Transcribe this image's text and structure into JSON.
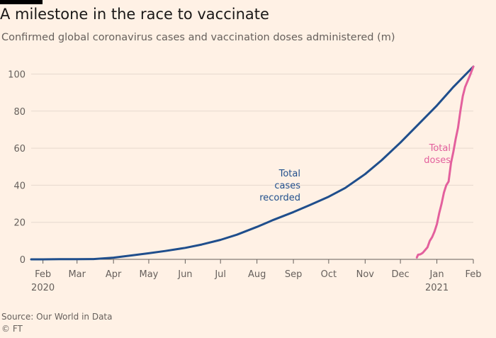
{
  "title": "A milestone in the race to vaccinate",
  "subtitle": "Confirmed global coronavirus cases and vaccination doses administered (m)",
  "source": "Source: Our World in Data",
  "copyright": "© FT",
  "chart_data": {
    "type": "line",
    "ylim": [
      0,
      104
    ],
    "xlim": [
      "2020-01-22",
      "2021-02-01"
    ],
    "y_ticks": [
      0,
      20,
      40,
      60,
      80,
      100
    ],
    "x_ticks": [
      {
        "label": "Feb",
        "sublabel": "2020",
        "date": "2020-02-01"
      },
      {
        "label": "Mar",
        "sublabel": "",
        "date": "2020-03-01"
      },
      {
        "label": "Apr",
        "sublabel": "",
        "date": "2020-04-01"
      },
      {
        "label": "May",
        "sublabel": "",
        "date": "2020-05-01"
      },
      {
        "label": "Jun",
        "sublabel": "",
        "date": "2020-06-01"
      },
      {
        "label": "Jul",
        "sublabel": "",
        "date": "2020-07-01"
      },
      {
        "label": "Aug",
        "sublabel": "",
        "date": "2020-08-01"
      },
      {
        "label": "Sep",
        "sublabel": "",
        "date": "2020-09-01"
      },
      {
        "label": "Oct",
        "sublabel": "",
        "date": "2020-10-01"
      },
      {
        "label": "Nov",
        "sublabel": "",
        "date": "2020-11-01"
      },
      {
        "label": "Dec",
        "sublabel": "",
        "date": "2020-12-01"
      },
      {
        "label": "Jan",
        "sublabel": "2021",
        "date": "2021-01-01"
      },
      {
        "label": "Feb",
        "sublabel": "",
        "date": "2021-02-01"
      }
    ],
    "grid": "horizontal",
    "series": [
      {
        "name": "Total cases recorded",
        "color": "#1f4e8c",
        "points": [
          [
            "2020-01-22",
            0.0
          ],
          [
            "2020-02-01",
            0.01
          ],
          [
            "2020-02-15",
            0.07
          ],
          [
            "2020-03-01",
            0.09
          ],
          [
            "2020-03-15",
            0.17
          ],
          [
            "2020-04-01",
            0.9
          ],
          [
            "2020-04-15",
            2.0
          ],
          [
            "2020-05-01",
            3.3
          ],
          [
            "2020-05-15",
            4.5
          ],
          [
            "2020-06-01",
            6.2
          ],
          [
            "2020-06-15",
            8.0
          ],
          [
            "2020-07-01",
            10.5
          ],
          [
            "2020-07-15",
            13.3
          ],
          [
            "2020-08-01",
            17.5
          ],
          [
            "2020-08-15",
            21.3
          ],
          [
            "2020-09-01",
            25.5
          ],
          [
            "2020-09-15",
            29.3
          ],
          [
            "2020-10-01",
            33.8
          ],
          [
            "2020-10-15",
            38.5
          ],
          [
            "2020-11-01",
            46.0
          ],
          [
            "2020-11-15",
            53.5
          ],
          [
            "2020-12-01",
            63.0
          ],
          [
            "2020-12-15",
            72.0
          ],
          [
            "2021-01-01",
            83.0
          ],
          [
            "2021-01-15",
            93.0
          ],
          [
            "2021-02-01",
            104.0
          ]
        ],
        "label_lines": [
          "Total",
          "cases",
          "recorded"
        ]
      },
      {
        "name": "Total doses",
        "color": "#e3609d",
        "points": [
          [
            "2020-12-15",
            1.0
          ],
          [
            "2020-12-16",
            2.5
          ],
          [
            "2020-12-18",
            2.7
          ],
          [
            "2020-12-20",
            3.5
          ],
          [
            "2020-12-22",
            5.0
          ],
          [
            "2020-12-24",
            6.5
          ],
          [
            "2020-12-26",
            10.0
          ],
          [
            "2020-12-28",
            12.0
          ],
          [
            "2020-12-30",
            15.0
          ],
          [
            "2021-01-01",
            19.0
          ],
          [
            "2021-01-03",
            25.0
          ],
          [
            "2021-01-05",
            30.0
          ],
          [
            "2021-01-07",
            36.0
          ],
          [
            "2021-01-09",
            40.0
          ],
          [
            "2021-01-11",
            42.0
          ],
          [
            "2021-01-13",
            52.0
          ],
          [
            "2021-01-15",
            58.0
          ],
          [
            "2021-01-17",
            65.0
          ],
          [
            "2021-01-19",
            71.0
          ],
          [
            "2021-01-21",
            80.0
          ],
          [
            "2021-01-23",
            88.0
          ],
          [
            "2021-01-25",
            93.0
          ],
          [
            "2021-01-27",
            96.0
          ],
          [
            "2021-01-29",
            99.0
          ],
          [
            "2021-02-01",
            104.0
          ]
        ],
        "label_lines": [
          "Total",
          "doses"
        ]
      }
    ]
  }
}
